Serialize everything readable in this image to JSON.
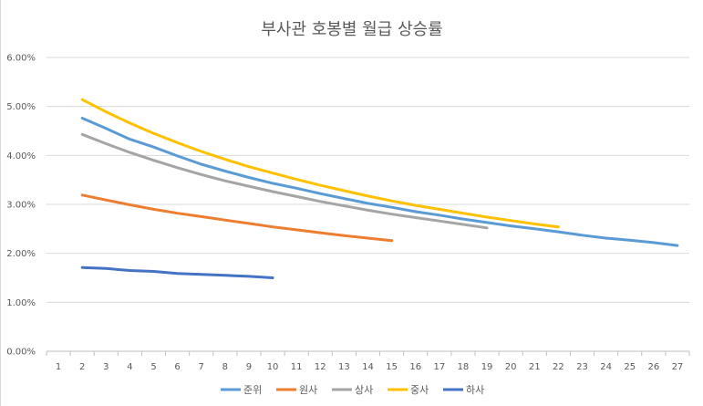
{
  "chart_data": {
    "type": "line",
    "title": "부사관 호봉별 월급 상승률",
    "xlabel": "",
    "ylabel": "",
    "x": [
      1,
      2,
      3,
      4,
      5,
      6,
      7,
      8,
      9,
      10,
      11,
      12,
      13,
      14,
      15,
      16,
      17,
      18,
      19,
      20,
      21,
      22,
      23,
      24,
      25,
      26,
      27
    ],
    "ylim": [
      0,
      0.06
    ],
    "y_ticks": [
      "0.00%",
      "1.00%",
      "2.00%",
      "3.00%",
      "4.00%",
      "5.00%",
      "6.00%"
    ],
    "grid": true,
    "legend_position": "bottom",
    "series": [
      {
        "name": "준위",
        "color": "#5b9bd5",
        "points": [
          [
            2,
            4.76
          ],
          [
            3,
            4.55
          ],
          [
            4,
            4.33
          ],
          [
            5,
            4.17
          ],
          [
            6,
            3.99
          ],
          [
            7,
            3.82
          ],
          [
            8,
            3.68
          ],
          [
            9,
            3.55
          ],
          [
            10,
            3.43
          ],
          [
            11,
            3.33
          ],
          [
            12,
            3.22
          ],
          [
            13,
            3.12
          ],
          [
            14,
            3.02
          ],
          [
            15,
            2.94
          ],
          [
            16,
            2.85
          ],
          [
            17,
            2.78
          ],
          [
            18,
            2.7
          ],
          [
            19,
            2.63
          ],
          [
            20,
            2.56
          ],
          [
            21,
            2.5
          ],
          [
            22,
            2.44
          ],
          [
            23,
            2.37
          ],
          [
            24,
            2.31
          ],
          [
            25,
            2.27
          ],
          [
            26,
            2.22
          ],
          [
            27,
            2.16
          ]
        ]
      },
      {
        "name": "원사",
        "color": "#ed7d31",
        "points": [
          [
            2,
            3.19
          ],
          [
            3,
            3.09
          ],
          [
            4,
            2.99
          ],
          [
            5,
            2.9
          ],
          [
            6,
            2.82
          ],
          [
            7,
            2.75
          ],
          [
            8,
            2.68
          ],
          [
            9,
            2.61
          ],
          [
            10,
            2.54
          ],
          [
            11,
            2.48
          ],
          [
            12,
            2.42
          ],
          [
            13,
            2.36
          ],
          [
            14,
            2.31
          ],
          [
            15,
            2.26
          ]
        ]
      },
      {
        "name": "상사",
        "color": "#a5a5a5",
        "points": [
          [
            2,
            4.43
          ],
          [
            3,
            4.24
          ],
          [
            4,
            4.06
          ],
          [
            5,
            3.9
          ],
          [
            6,
            3.75
          ],
          [
            7,
            3.61
          ],
          [
            8,
            3.48
          ],
          [
            9,
            3.37
          ],
          [
            10,
            3.26
          ],
          [
            11,
            3.16
          ],
          [
            12,
            3.06
          ],
          [
            13,
            2.97
          ],
          [
            14,
            2.88
          ],
          [
            15,
            2.8
          ],
          [
            16,
            2.73
          ],
          [
            17,
            2.66
          ],
          [
            18,
            2.59
          ],
          [
            19,
            2.52
          ]
        ]
      },
      {
        "name": "중사",
        "color": "#ffc000",
        "points": [
          [
            2,
            5.14
          ],
          [
            3,
            4.89
          ],
          [
            4,
            4.66
          ],
          [
            5,
            4.45
          ],
          [
            6,
            4.26
          ],
          [
            7,
            4.08
          ],
          [
            8,
            3.92
          ],
          [
            9,
            3.77
          ],
          [
            10,
            3.64
          ],
          [
            11,
            3.51
          ],
          [
            12,
            3.39
          ],
          [
            13,
            3.28
          ],
          [
            14,
            3.17
          ],
          [
            15,
            3.07
          ],
          [
            16,
            2.98
          ],
          [
            17,
            2.9
          ],
          [
            18,
            2.82
          ],
          [
            19,
            2.74
          ],
          [
            20,
            2.67
          ],
          [
            21,
            2.6
          ],
          [
            22,
            2.54
          ]
        ]
      },
      {
        "name": "하사",
        "color": "#4472c4",
        "points": [
          [
            2,
            1.71
          ],
          [
            3,
            1.69
          ],
          [
            4,
            1.65
          ],
          [
            5,
            1.63
          ],
          [
            6,
            1.59
          ],
          [
            7,
            1.57
          ],
          [
            8,
            1.55
          ],
          [
            9,
            1.53
          ],
          [
            10,
            1.5
          ]
        ]
      }
    ]
  }
}
